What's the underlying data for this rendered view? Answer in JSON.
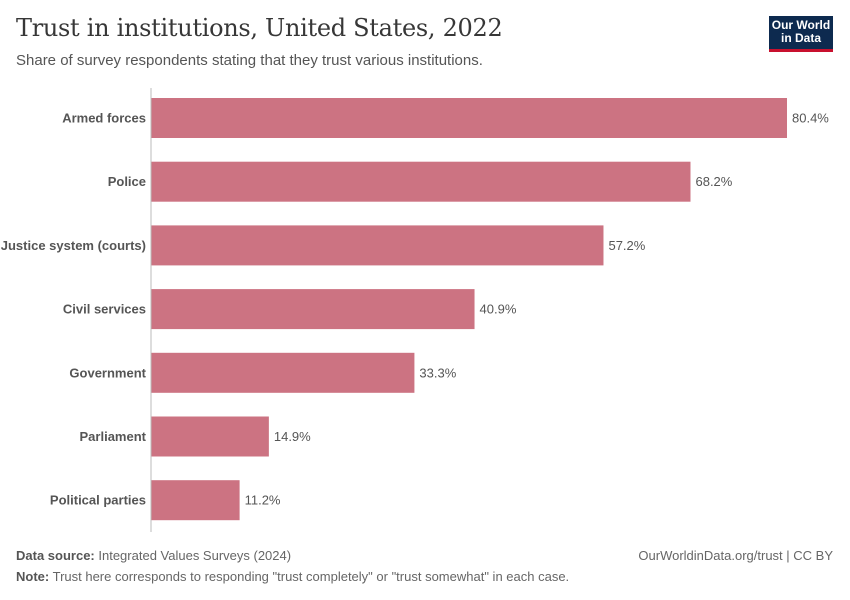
{
  "header": {
    "title": "Trust in institutions, United States, 2022",
    "subtitle": "Share of survey respondents stating that they trust various institutions.",
    "logo": [
      "Our World",
      "in Data"
    ]
  },
  "chart_data": {
    "type": "bar",
    "orientation": "horizontal",
    "categories": [
      "Armed forces",
      "Police",
      "Justice system (courts)",
      "Civil services",
      "Government",
      "Parliament",
      "Political parties"
    ],
    "values": [
      80.4,
      68.2,
      57.2,
      40.9,
      33.3,
      14.9,
      11.2
    ],
    "labels": [
      "80.4%",
      "68.2%",
      "57.2%",
      "40.9%",
      "33.3%",
      "14.9%",
      "11.2%"
    ],
    "unit": "%",
    "xlim": [
      0,
      80.4
    ],
    "bar_color": "#cc7382",
    "grid": false
  },
  "footer": {
    "source_label": "Data source:",
    "source": "Integrated Values Surveys (2024)",
    "url": "OurWorldinData.org/trust | CC BY",
    "note_label": "Note:",
    "note": "Trust here corresponds to responding \"trust completely\" or \"trust somewhat\" in each case."
  }
}
